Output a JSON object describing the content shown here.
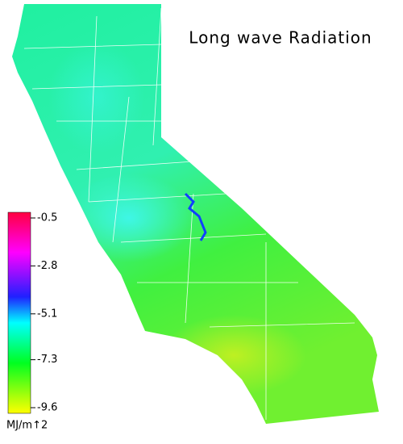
{
  "title": "Long wave Radiation",
  "legend": {
    "ticks": [
      -0.5,
      -2.8,
      -5.1,
      -7.3,
      -9.6
    ],
    "unit": "MJ/m↑2"
  }
}
